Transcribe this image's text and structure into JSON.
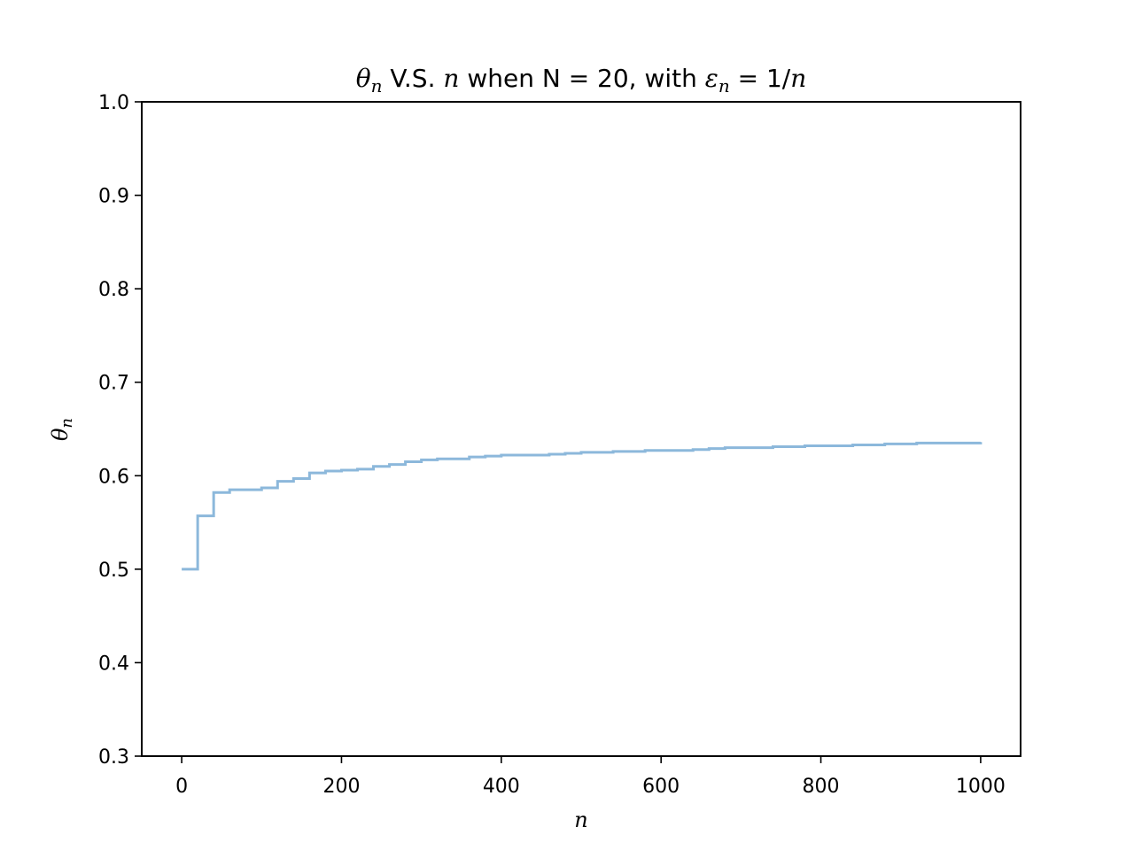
{
  "chart_data": {
    "type": "line",
    "title": {
      "parts": [
        {
          "text": "θ",
          "math": true
        },
        {
          "text": "n",
          "math": true,
          "sub": true
        },
        {
          "text": " V.S. "
        },
        {
          "text": "n",
          "math": true
        },
        {
          "text": " when N = 20, with "
        },
        {
          "text": "ε",
          "math": true
        },
        {
          "text": "n",
          "math": true,
          "sub": true
        },
        {
          "text": " = 1/"
        },
        {
          "text": "n",
          "math": true
        }
      ]
    },
    "xlabel": "n",
    "ylabel": {
      "main": "θ",
      "sub": "n"
    },
    "xlim": [
      -50,
      1050
    ],
    "ylim": [
      0.3,
      1.0
    ],
    "xticks": [
      0,
      200,
      400,
      600,
      800,
      1000
    ],
    "yticks": [
      0.3,
      0.4,
      0.5,
      0.6,
      0.7,
      0.8,
      0.9,
      1.0
    ],
    "grid": false,
    "series": [
      {
        "color": "#8cb8db",
        "step": true,
        "x": [
          0,
          20,
          40,
          60,
          80,
          100,
          120,
          140,
          160,
          180,
          200,
          220,
          240,
          260,
          280,
          300,
          320,
          340,
          360,
          380,
          400,
          420,
          440,
          460,
          480,
          500,
          520,
          540,
          560,
          580,
          600,
          620,
          640,
          660,
          680,
          700,
          720,
          740,
          760,
          780,
          800,
          820,
          840,
          860,
          880,
          900,
          920,
          940,
          960,
          980,
          1000
        ],
        "y": [
          0.5,
          0.557,
          0.582,
          0.585,
          0.585,
          0.587,
          0.594,
          0.597,
          0.603,
          0.605,
          0.606,
          0.607,
          0.61,
          0.612,
          0.615,
          0.617,
          0.618,
          0.618,
          0.62,
          0.621,
          0.622,
          0.622,
          0.622,
          0.623,
          0.624,
          0.625,
          0.625,
          0.626,
          0.626,
          0.627,
          0.627,
          0.627,
          0.628,
          0.629,
          0.63,
          0.63,
          0.63,
          0.631,
          0.631,
          0.632,
          0.632,
          0.632,
          0.633,
          0.633,
          0.634,
          0.634,
          0.635,
          0.635,
          0.635,
          0.635,
          0.636
        ]
      }
    ]
  }
}
